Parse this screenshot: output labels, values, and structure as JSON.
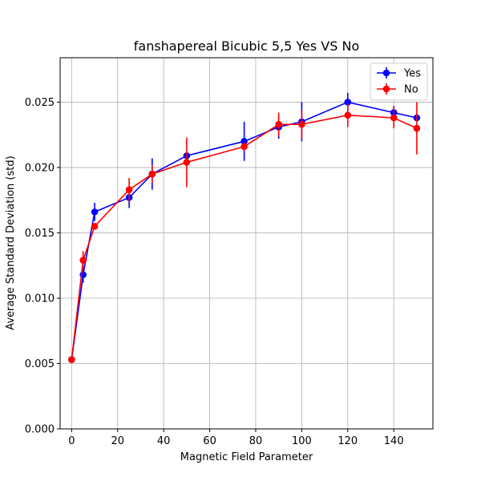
{
  "chart_data": {
    "type": "line",
    "title": "fanshapereal Bicubic 5,5 Yes VS No",
    "xlabel": "Magnetic Field Parameter",
    "ylabel": "Average Standard Deviation (std)",
    "xlim": [
      -5,
      157
    ],
    "ylim": [
      0,
      0.0284
    ],
    "xticks": [
      0,
      20,
      40,
      60,
      80,
      100,
      120,
      140
    ],
    "yticks": [
      0.0,
      0.005,
      0.01,
      0.015,
      0.02,
      0.025
    ],
    "ytick_labels": [
      "0.000",
      "0.005",
      "0.010",
      "0.015",
      "0.020",
      "0.025"
    ],
    "grid": true,
    "legend_position": "top-right",
    "series": [
      {
        "name": "Yes",
        "color": "#0000ff",
        "x": [
          0,
          5,
          10,
          25,
          35,
          50,
          75,
          90,
          100,
          120,
          140,
          150
        ],
        "y": [
          0.0053,
          0.0118,
          0.0166,
          0.0177,
          0.0195,
          0.0209,
          0.022,
          0.0231,
          0.0235,
          0.025,
          0.0242,
          0.0238
        ],
        "err": [
          0.0001,
          0.0006,
          0.0007,
          0.0008,
          0.0012,
          0.0001,
          0.0015,
          0.0009,
          0.0015,
          0.0007,
          0.0005,
          0.0003
        ]
      },
      {
        "name": "No",
        "color": "#ff0000",
        "x": [
          0,
          5,
          10,
          25,
          35,
          50,
          75,
          90,
          100,
          120,
          140,
          150
        ],
        "y": [
          0.0053,
          0.0129,
          0.0155,
          0.0183,
          0.0195,
          0.0204,
          0.0216,
          0.0233,
          0.0233,
          0.024,
          0.0238,
          0.023
        ],
        "err": [
          0.0001,
          0.0007,
          0.0002,
          0.0009,
          0.0007,
          0.0019,
          0.0003,
          0.0009,
          0.0011,
          0.0009,
          0.0008,
          0.002
        ]
      }
    ]
  }
}
